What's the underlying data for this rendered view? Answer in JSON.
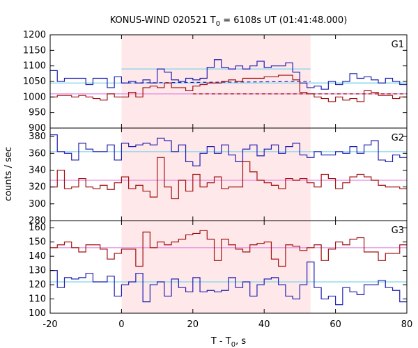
{
  "chart_data": {
    "type": "line",
    "title": {
      "main": "KONUS-WIND 020521 T",
      "sub": "0",
      "rest": " = 6108s UT (01:41:48.000)"
    },
    "xlabel": {
      "main": "T - T",
      "sub": "0",
      "rest": ", s"
    },
    "ylabel": "counts / sec",
    "xlim": [
      -20,
      80
    ],
    "xticks": [
      -20,
      0,
      20,
      40,
      60,
      80
    ],
    "shaded_interval": [
      0,
      53
    ],
    "colors": {
      "blue": "#2020b0",
      "red": "#a01010",
      "cyan": "#7fd4ea",
      "pink": "#e48ae0",
      "shade": "#ffe8ea"
    },
    "bin_edges": [
      -20,
      -18,
      -16,
      -14,
      -12,
      -10,
      -8,
      -6,
      -4,
      -2,
      0,
      2,
      4,
      6,
      8,
      10,
      12,
      14,
      16,
      18,
      20,
      22,
      24,
      26,
      28,
      30,
      32,
      34,
      36,
      38,
      40,
      42,
      44,
      46,
      48,
      50,
      52,
      54,
      56,
      58,
      60,
      62,
      64,
      66,
      68,
      70,
      72,
      74,
      76,
      78,
      80
    ],
    "panels": [
      {
        "label": "G1",
        "ylim": [
          900,
          1200
        ],
        "yticks": [
          900,
          950,
          1000,
          1050,
          1100,
          1150,
          1200
        ],
        "series": [
          {
            "color": "blue",
            "values": [
              1085,
              1050,
              1060,
              1060,
              1060,
              1040,
              1060,
              1060,
              1030,
              1065,
              1045,
              1050,
              1045,
              1055,
              1045,
              1090,
              1080,
              1055,
              1050,
              1060,
              1055,
              1060,
              1095,
              1120,
              1095,
              1090,
              1100,
              1090,
              1100,
              1115,
              1095,
              1100,
              1100,
              1110,
              1080,
              1045,
              1030,
              1035,
              1025,
              1050,
              1040,
              1050,
              1075,
              1060,
              1065,
              1055,
              1045,
              1060,
              1050,
              1040
            ]
          },
          {
            "color": "red",
            "values": [
              1000,
              1005,
              1005,
              1000,
              1005,
              1000,
              995,
              990,
              1010,
              1000,
              1000,
              1015,
              1000,
              1030,
              1035,
              1030,
              1045,
              1030,
              1030,
              1020,
              1035,
              1040,
              1045,
              1045,
              1050,
              1055,
              1050,
              1060,
              1060,
              1060,
              1065,
              1065,
              1070,
              1070,
              1055,
              1015,
              1010,
              1000,
              995,
              985,
              1000,
              990,
              995,
              985,
              1020,
              1015,
              1005,
              1005,
              995,
              1000
            ]
          },
          {
            "color": "cyan",
            "kind": "fit",
            "x": [
              0,
              53
            ],
            "y": [
              1090,
              1090
            ]
          },
          {
            "color": "cyan",
            "kind": "fit",
            "x": [
              -20,
              80
            ],
            "y": [
              1045,
              1045
            ],
            "range": [
              -20,
              0
            ]
          },
          {
            "color": "cyan",
            "kind": "fit",
            "x": [
              53,
              80
            ],
            "y": [
              1045,
              1045
            ]
          },
          {
            "color": "pink",
            "kind": "fit",
            "x": [
              -20,
              80
            ],
            "y": [
              1010,
              1010
            ]
          },
          {
            "color": "blue",
            "kind": "dashed",
            "x": [
              0,
              53
            ],
            "y": [
              1045,
              1050
            ]
          },
          {
            "color": "red",
            "kind": "dashed",
            "x": [
              20,
              80
            ],
            "y": [
              1010,
              1010
            ]
          }
        ]
      },
      {
        "label": "G2",
        "ylim": [
          280,
          390
        ],
        "yticks": [
          280,
          300,
          320,
          340,
          360,
          380
        ],
        "series": [
          {
            "color": "blue",
            "values": [
              382,
              362,
              360,
              352,
              372,
              365,
              362,
              362,
              370,
              352,
              372,
              368,
              370,
              372,
              370,
              378,
              375,
              362,
              370,
              350,
              345,
              360,
              368,
              360,
              370,
              358,
              350,
              365,
              370,
              357,
              365,
              370,
              360,
              368,
              372,
              358,
              355,
              362,
              358,
              358,
              362,
              360,
              368,
              360,
              370,
              375,
              352,
              350,
              358,
              355
            ]
          },
          {
            "color": "red",
            "values": [
              320,
              340,
              318,
              320,
              330,
              320,
              318,
              322,
              317,
              325,
              332,
              318,
              322,
              315,
              308,
              355,
              320,
              306,
              328,
              315,
              335,
              320,
              325,
              332,
              318,
              320,
              320,
              350,
              338,
              328,
              325,
              322,
              318,
              330,
              328,
              330,
              325,
              320,
              335,
              330,
              318,
              325,
              332,
              335,
              332,
              328,
              322,
              320,
              320,
              318
            ]
          },
          {
            "color": "cyan",
            "kind": "fit",
            "x": [
              -20,
              80
            ],
            "y": [
              362,
              362
            ]
          },
          {
            "color": "pink",
            "kind": "fit",
            "x": [
              -20,
              80
            ],
            "y": [
              328,
              328
            ]
          }
        ]
      },
      {
        "label": "G3",
        "ylim": [
          100,
          165
        ],
        "yticks": [
          100,
          110,
          120,
          130,
          140,
          150,
          160
        ],
        "series": [
          {
            "color": "blue",
            "values": [
              130,
              118,
              125,
              124,
              125,
              128,
              122,
              122,
              126,
              112,
              120,
              122,
              128,
              108,
              120,
              122,
              112,
              124,
              118,
              115,
              125,
              115,
              116,
              115,
              116,
              125,
              118,
              122,
              112,
              120,
              124,
              125,
              120,
              112,
              110,
              120,
              136,
              118,
              110,
              112,
              106,
              118,
              115,
              113,
              120,
              120,
              123,
              118,
              116,
              108
            ]
          },
          {
            "color": "red",
            "values": [
              146,
              148,
              150,
              146,
              143,
              148,
              148,
              145,
              138,
              142,
              145,
              145,
              133,
              157,
              146,
              150,
              148,
              150,
              152,
              155,
              156,
              158,
              152,
              137,
              152,
              148,
              145,
              143,
              148,
              149,
              150,
              138,
              133,
              148,
              147,
              144,
              146,
              148,
              137,
              145,
              150,
              148,
              152,
              153,
              143,
              143,
              137,
              142,
              142,
              148
            ]
          },
          {
            "color": "cyan",
            "kind": "fit",
            "x": [
              -20,
              80
            ],
            "y": [
              122,
              122
            ]
          },
          {
            "color": "pink",
            "kind": "fit",
            "x": [
              -20,
              80
            ],
            "y": [
              146,
              146
            ]
          }
        ]
      }
    ]
  }
}
